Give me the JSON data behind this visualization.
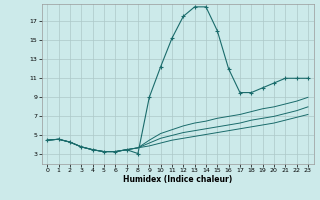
{
  "xlabel": "Humidex (Indice chaleur)",
  "bg_color": "#cceaea",
  "line_color": "#1a6b6b",
  "grid_color": "#adc8c8",
  "xlim": [
    -0.5,
    23.5
  ],
  "ylim": [
    2.0,
    18.8
  ],
  "yticks": [
    3,
    5,
    7,
    9,
    11,
    13,
    15,
    17
  ],
  "xticks": [
    0,
    1,
    2,
    3,
    4,
    5,
    6,
    7,
    8,
    9,
    10,
    11,
    12,
    13,
    14,
    15,
    16,
    17,
    18,
    19,
    20,
    21,
    22,
    23
  ],
  "main_series": [
    4.5,
    4.6,
    4.3,
    3.8,
    3.5,
    3.3,
    3.3,
    3.5,
    3.1,
    9.0,
    12.2,
    15.2,
    17.5,
    18.5,
    18.5,
    16.0,
    12.0,
    9.5,
    9.5,
    10.0,
    10.5,
    11.0,
    11.0,
    11.0
  ],
  "line2": [
    4.5,
    4.6,
    4.3,
    3.8,
    3.5,
    3.3,
    3.3,
    3.5,
    3.7,
    4.5,
    5.2,
    5.6,
    6.0,
    6.3,
    6.5,
    6.8,
    7.0,
    7.2,
    7.5,
    7.8,
    8.0,
    8.3,
    8.6,
    9.0
  ],
  "line3": [
    4.5,
    4.6,
    4.3,
    3.8,
    3.5,
    3.3,
    3.3,
    3.5,
    3.7,
    4.2,
    4.7,
    5.0,
    5.3,
    5.5,
    5.7,
    5.9,
    6.1,
    6.3,
    6.6,
    6.8,
    7.0,
    7.3,
    7.6,
    8.0
  ],
  "line4": [
    4.5,
    4.6,
    4.3,
    3.8,
    3.5,
    3.3,
    3.3,
    3.5,
    3.7,
    3.9,
    4.2,
    4.5,
    4.7,
    4.9,
    5.1,
    5.3,
    5.5,
    5.7,
    5.9,
    6.1,
    6.3,
    6.6,
    6.9,
    7.2
  ]
}
